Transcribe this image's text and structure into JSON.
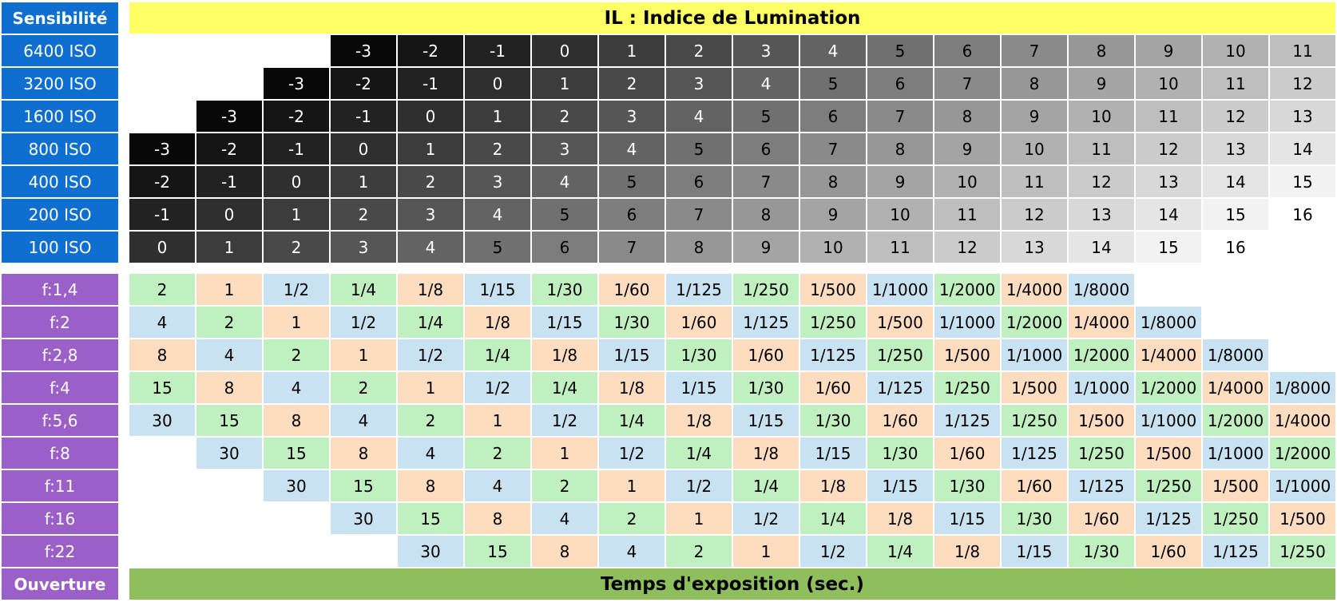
{
  "sensitivity_label": "Sensibilité",
  "il_header": "IL : Indice de Lumination",
  "aperture_label": "Ouverture",
  "exposure_header": "Temps d'exposition (sec.)",
  "iso_rows": [
    {
      "label": "6400 ISO",
      "values": [
        "",
        "",
        "",
        "-3",
        "-2",
        "-1",
        "0",
        "1",
        "2",
        "3",
        "4",
        "5",
        "6",
        "7",
        "8",
        "9",
        "10",
        "11"
      ]
    },
    {
      "label": "3200 ISO",
      "values": [
        "",
        "",
        "-3",
        "-2",
        "-1",
        "0",
        "1",
        "2",
        "3",
        "4",
        "5",
        "6",
        "7",
        "8",
        "9",
        "10",
        "11",
        "12"
      ]
    },
    {
      "label": "1600 ISO",
      "values": [
        "",
        "-3",
        "-2",
        "-1",
        "0",
        "1",
        "2",
        "3",
        "4",
        "5",
        "6",
        "7",
        "8",
        "9",
        "10",
        "11",
        "12",
        "13"
      ]
    },
    {
      "label": "800 ISO",
      "values": [
        "-3",
        "-2",
        "-1",
        "0",
        "1",
        "2",
        "3",
        "4",
        "5",
        "6",
        "7",
        "8",
        "9",
        "10",
        "11",
        "12",
        "13",
        "14"
      ]
    },
    {
      "label": "400 ISO",
      "values": [
        "-2",
        "-1",
        "0",
        "1",
        "2",
        "3",
        "4",
        "5",
        "6",
        "7",
        "8",
        "9",
        "10",
        "11",
        "12",
        "13",
        "14",
        "15"
      ]
    },
    {
      "label": "200 ISO",
      "values": [
        "-1",
        "0",
        "1",
        "2",
        "3",
        "4",
        "5",
        "6",
        "7",
        "8",
        "9",
        "10",
        "11",
        "12",
        "13",
        "14",
        "15",
        "16"
      ]
    },
    {
      "label": "100 ISO",
      "values": [
        "0",
        "1",
        "2",
        "3",
        "4",
        "5",
        "6",
        "7",
        "8",
        "9",
        "10",
        "11",
        "12",
        "13",
        "14",
        "15",
        "16",
        ""
      ]
    }
  ],
  "aperture_rows": [
    {
      "label": "f:1,4",
      "values": [
        "2",
        "1",
        "1/2",
        "1/4",
        "1/8",
        "1/15",
        "1/30",
        "1/60",
        "1/125",
        "1/250",
        "1/500",
        "1/1000",
        "1/2000",
        "1/4000",
        "1/8000",
        "",
        "",
        ""
      ]
    },
    {
      "label": "f:2",
      "values": [
        "4",
        "2",
        "1",
        "1/2",
        "1/4",
        "1/8",
        "1/15",
        "1/30",
        "1/60",
        "1/125",
        "1/250",
        "1/500",
        "1/1000",
        "1/2000",
        "1/4000",
        "1/8000",
        "",
        ""
      ]
    },
    {
      "label": "f:2,8",
      "values": [
        "8",
        "4",
        "2",
        "1",
        "1/2",
        "1/4",
        "1/8",
        "1/15",
        "1/30",
        "1/60",
        "1/125",
        "1/250",
        "1/500",
        "1/1000",
        "1/2000",
        "1/4000",
        "1/8000",
        ""
      ]
    },
    {
      "label": "f:4",
      "values": [
        "15",
        "8",
        "4",
        "2",
        "1",
        "1/2",
        "1/4",
        "1/8",
        "1/15",
        "1/30",
        "1/60",
        "1/125",
        "1/250",
        "1/500",
        "1/1000",
        "1/2000",
        "1/4000",
        "1/8000"
      ]
    },
    {
      "label": "f:5,6",
      "values": [
        "30",
        "15",
        "8",
        "4",
        "2",
        "1",
        "1/2",
        "1/4",
        "1/8",
        "1/15",
        "1/30",
        "1/60",
        "1/125",
        "1/250",
        "1/500",
        "1/1000",
        "1/2000",
        "1/4000"
      ]
    },
    {
      "label": "f:8",
      "values": [
        "",
        "30",
        "15",
        "8",
        "4",
        "2",
        "1",
        "1/2",
        "1/4",
        "1/8",
        "1/15",
        "1/30",
        "1/60",
        "1/125",
        "1/250",
        "1/500",
        "1/1000",
        "1/2000"
      ]
    },
    {
      "label": "f:11",
      "values": [
        "",
        "",
        "30",
        "15",
        "8",
        "4",
        "2",
        "1",
        "1/2",
        "1/4",
        "1/8",
        "1/15",
        "1/30",
        "1/60",
        "1/125",
        "1/250",
        "1/500",
        "1/1000"
      ]
    },
    {
      "label": "f:16",
      "values": [
        "",
        "",
        "",
        "30",
        "15",
        "8",
        "4",
        "2",
        "1",
        "1/2",
        "1/4",
        "1/8",
        "1/15",
        "1/30",
        "1/60",
        "1/125",
        "1/250",
        "1/500"
      ]
    },
    {
      "label": "f:22",
      "values": [
        "",
        "",
        "",
        "",
        "30",
        "15",
        "8",
        "4",
        "2",
        "1",
        "1/2",
        "1/4",
        "1/8",
        "1/15",
        "1/30",
        "1/60",
        "1/125",
        "1/250"
      ]
    }
  ],
  "colors": {
    "iso_label": "#0e6fd0",
    "aperture_label": "#9a60c8",
    "il_header": "#ffff66",
    "exposure_header": "#8fbf5c",
    "time_green": "#c0f0c0",
    "time_peach": "#fddcc0",
    "time_blue": "#c8e2f2"
  }
}
